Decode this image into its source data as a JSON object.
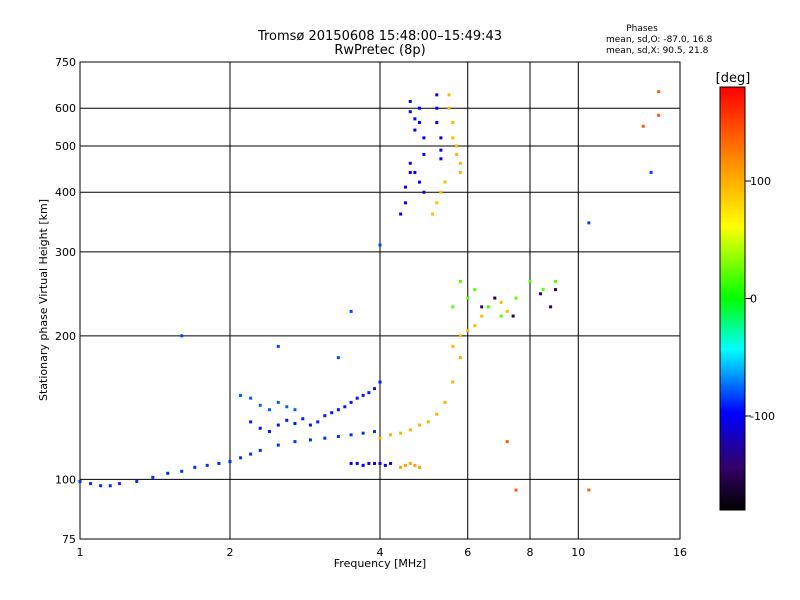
{
  "chart_data": {
    "type": "scatter",
    "title": "Tromsø 20150608 15:48:00–15:49:43",
    "subtitle": "RwPretec (8p)",
    "xlabel": "Frequency [MHz]",
    "ylabel": "Stationary phase Virtual Height [km]",
    "x_scale": "log",
    "y_scale": "log",
    "xlim": [
      1,
      16
    ],
    "ylim": [
      75,
      750
    ],
    "x_ticks": [
      1,
      2,
      4,
      6,
      8,
      10,
      16
    ],
    "x_tick_labels": [
      "1",
      "2",
      "4",
      "6",
      "8",
      "10",
      "16"
    ],
    "y_ticks": [
      75,
      100,
      200,
      300,
      400,
      500,
      600,
      750
    ],
    "y_tick_labels": [
      "75",
      "100",
      "200",
      "300",
      "400",
      "500",
      "600",
      "750"
    ],
    "grid": true,
    "phases_stats": {
      "heading": "Phases",
      "line_o": "mean, sd,O: -87.0, 16.8",
      "line_x": "mean, sd,X:  90.5, 21.8"
    },
    "colorbar": {
      "label": "[deg]",
      "range": [
        -180,
        180
      ],
      "ticks": [
        100,
        0,
        -100
      ],
      "tick_labels": [
        "100",
        "0",
        "-100"
      ],
      "colors": [
        "#ff0000",
        "#ff8800",
        "#ffff00",
        "#00ff00",
        "#00ffff",
        "#0000ff",
        "#000000"
      ]
    },
    "series": [
      {
        "phase": -90,
        "x": [
          1.0,
          1.05,
          1.1,
          1.15,
          1.2,
          1.3,
          1.4,
          1.5,
          1.6,
          1.7,
          1.8,
          1.9,
          2.0,
          2.1,
          2.2,
          2.3,
          2.5,
          2.7,
          2.9,
          3.1,
          3.3,
          3.5,
          3.7,
          3.9
        ],
        "y": [
          99,
          98,
          97,
          97,
          98,
          99,
          101,
          103,
          104,
          106,
          107,
          108,
          109,
          111,
          113,
          115,
          118,
          120,
          121,
          122,
          123,
          124,
          125,
          126
        ]
      },
      {
        "phase": -95,
        "x": [
          2.2,
          2.3,
          2.4,
          2.5,
          2.6,
          2.7,
          2.8,
          2.9,
          3.0,
          3.1,
          3.2,
          3.3,
          3.4,
          3.5,
          3.6,
          3.7,
          3.8,
          3.9,
          4.0
        ],
        "y": [
          132,
          128,
          126,
          130,
          133,
          131,
          134,
          130,
          132,
          136,
          138,
          140,
          142,
          145,
          148,
          150,
          152,
          155,
          160
        ]
      },
      {
        "phase": -80,
        "x": [
          2.1,
          2.2,
          2.3,
          2.4,
          2.5,
          2.6,
          2.7
        ],
        "y": [
          150,
          148,
          143,
          140,
          145,
          142,
          140
        ]
      },
      {
        "phase": -105,
        "x": [
          3.5,
          3.6,
          3.7,
          3.8,
          3.9,
          4.0,
          4.1,
          4.2
        ],
        "y": [
          108,
          108,
          107,
          108,
          108,
          108,
          107,
          108
        ]
      },
      {
        "phase": 105,
        "x": [
          4.4,
          4.5,
          4.6,
          4.7,
          4.8
        ],
        "y": [
          106,
          107,
          108,
          107,
          106
        ]
      },
      {
        "phase": 100,
        "x": [
          4.0,
          4.2,
          4.4,
          4.6,
          4.8,
          5.0,
          5.2,
          5.4,
          5.6,
          5.8
        ],
        "y": [
          122,
          124,
          125,
          127,
          130,
          132,
          137,
          145,
          160,
          180
        ]
      },
      {
        "phase": 95,
        "x": [
          5.6,
          5.8,
          6.0,
          6.2,
          6.4,
          6.6,
          6.8,
          7.0,
          7.2
        ],
        "y": [
          190,
          200,
          205,
          210,
          220,
          230,
          240,
          235,
          225
        ]
      },
      {
        "phase": -100,
        "x": [
          4.6,
          4.6,
          4.7,
          4.7,
          4.8,
          4.8,
          4.9,
          4.9,
          4.6,
          4.7,
          4.8,
          4.9,
          4.4,
          4.5,
          4.5,
          4.6
        ],
        "y": [
          620,
          590,
          570,
          540,
          600,
          560,
          520,
          480,
          460,
          440,
          420,
          400,
          360,
          380,
          410,
          440
        ]
      },
      {
        "phase": -100,
        "x": [
          5.2,
          5.2,
          5.2,
          5.3,
          5.3,
          5.3
        ],
        "y": [
          640,
          600,
          560,
          520,
          490,
          470
        ]
      },
      {
        "phase": 95,
        "x": [
          5.5,
          5.5,
          5.6,
          5.6,
          5.7,
          5.7,
          5.8,
          5.8,
          5.4,
          5.3,
          5.2,
          5.1
        ],
        "y": [
          640,
          600,
          560,
          520,
          500,
          480,
          460,
          440,
          420,
          400,
          380,
          360
        ]
      },
      {
        "phase": 20,
        "x": [
          5.6,
          5.8,
          6.0,
          6.2,
          6.6,
          7.0,
          7.5,
          8.0,
          8.5,
          9.0
        ],
        "y": [
          230,
          260,
          240,
          250,
          230,
          220,
          240,
          260,
          250,
          260
        ]
      },
      {
        "phase": -150,
        "x": [
          6.4,
          6.8,
          7.4,
          8.4,
          8.8,
          9.0
        ],
        "y": [
          230,
          240,
          220,
          245,
          230,
          250
        ]
      },
      {
        "phase": 140,
        "x": [
          7.2,
          7.5,
          10.5,
          13.5,
          14.5,
          14.5
        ],
        "y": [
          120,
          95,
          95,
          550,
          580,
          650
        ]
      },
      {
        "phase": -85,
        "x": [
          1.6,
          3.3,
          3.5,
          4.0,
          10.5,
          14.0,
          2.5
        ],
        "y": [
          200,
          180,
          225,
          310,
          345,
          440,
          190
        ]
      }
    ]
  }
}
